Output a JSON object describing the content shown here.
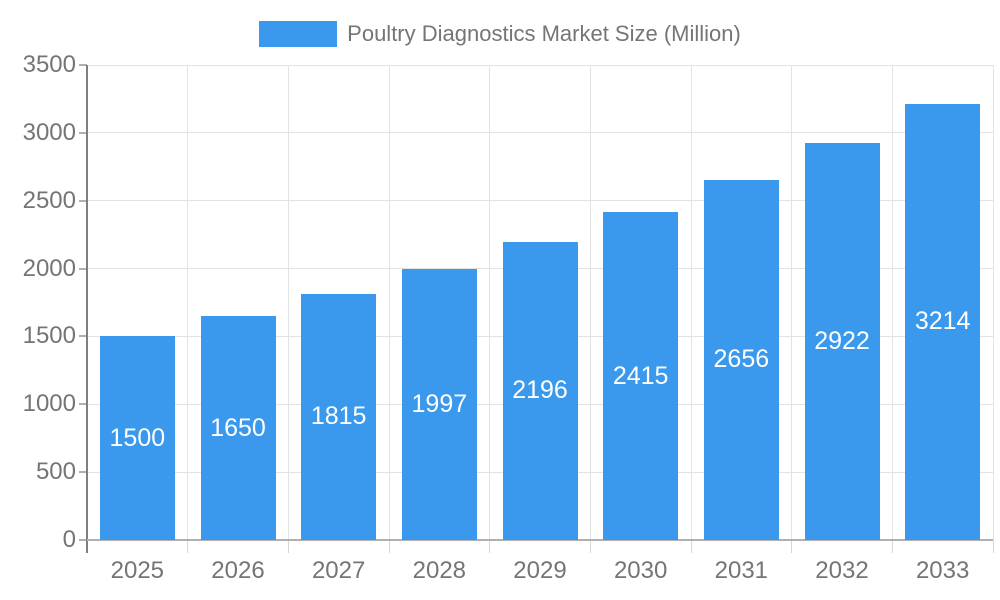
{
  "chart_data": {
    "type": "bar",
    "title": "Poultry Diagnostics Market Size (Million)",
    "categories": [
      "2025",
      "2026",
      "2027",
      "2028",
      "2029",
      "2030",
      "2031",
      "2032",
      "2033"
    ],
    "values": [
      1500,
      1650,
      1815,
      1997,
      2196,
      2415,
      2656,
      2922,
      3214
    ],
    "ylim": [
      0,
      3500
    ],
    "yticks": [
      0,
      500,
      1000,
      1500,
      2000,
      2500,
      3000,
      3500
    ],
    "xlabel": "",
    "ylabel": "",
    "grid": true,
    "legend_position": "top-center",
    "bar_label_position": "inside-center",
    "colors": {
      "bar": "#3A99EC",
      "bar_label": "#FFFFFF",
      "axis_text": "#757575",
      "gridline": "#E3E3E3",
      "y_axis_line": "#7F7F7F",
      "x_axis_line": "#B0B0B0"
    }
  }
}
